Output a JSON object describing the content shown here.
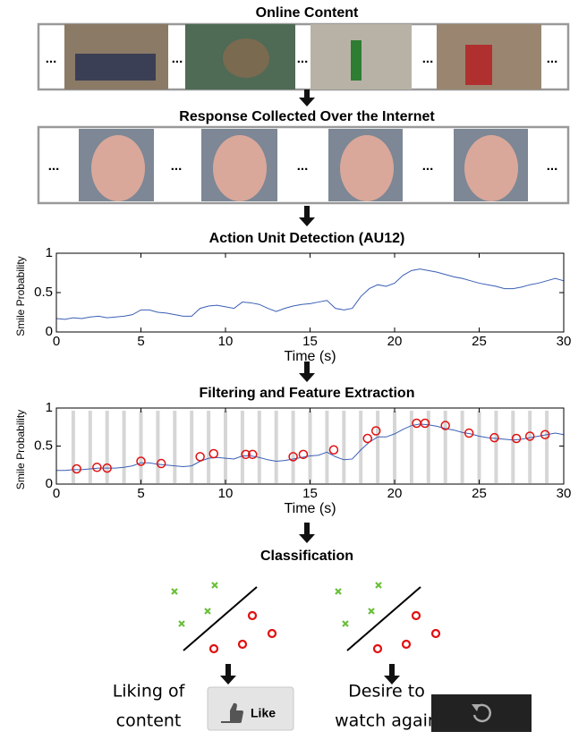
{
  "stages": [
    "Online Content",
    "Response Collected Over the Internet",
    "Classification"
  ],
  "ellipsis": "...",
  "chart_data": [
    {
      "type": "line",
      "title": "Action Unit Detection (AU12)",
      "xlabel": "Time (s)",
      "ylabel": "Smile Probability",
      "x": [
        0,
        0.5,
        1,
        1.5,
        2,
        2.5,
        3,
        3.5,
        4,
        4.5,
        5,
        5.5,
        6,
        6.5,
        7,
        7.5,
        8,
        8.5,
        9,
        9.5,
        10,
        10.5,
        11,
        11.5,
        12,
        12.5,
        13,
        13.5,
        14,
        14.5,
        15,
        15.5,
        16,
        16.5,
        17,
        17.5,
        18,
        18.5,
        19,
        19.5,
        20,
        20.5,
        21,
        21.5,
        22,
        22.5,
        23,
        23.5,
        24,
        24.5,
        25,
        25.5,
        26,
        26.5,
        27,
        27.5,
        28,
        28.5,
        29,
        29.5,
        30
      ],
      "values": [
        0.17,
        0.16,
        0.18,
        0.17,
        0.19,
        0.2,
        0.18,
        0.19,
        0.2,
        0.22,
        0.28,
        0.28,
        0.25,
        0.24,
        0.22,
        0.2,
        0.2,
        0.3,
        0.33,
        0.34,
        0.32,
        0.3,
        0.38,
        0.37,
        0.35,
        0.3,
        0.26,
        0.3,
        0.33,
        0.35,
        0.36,
        0.38,
        0.4,
        0.3,
        0.28,
        0.3,
        0.45,
        0.55,
        0.6,
        0.58,
        0.62,
        0.72,
        0.78,
        0.8,
        0.78,
        0.76,
        0.73,
        0.7,
        0.68,
        0.65,
        0.62,
        0.6,
        0.58,
        0.55,
        0.55,
        0.57,
        0.6,
        0.62,
        0.65,
        0.68,
        0.65
      ],
      "color": "#3b5fb5",
      "xlim": [
        0,
        30
      ],
      "ylim": [
        0,
        1
      ],
      "xticks": [
        0,
        5,
        10,
        15,
        20,
        25,
        30
      ],
      "yticks": [
        0,
        0.5,
        1
      ]
    },
    {
      "type": "line",
      "title": "Filtering and Feature Extraction",
      "xlabel": "Time (s)",
      "ylabel": "Smile Probability",
      "x": [
        0,
        0.5,
        1,
        1.5,
        2,
        2.5,
        3,
        3.5,
        4,
        4.5,
        5,
        5.5,
        6,
        6.5,
        7,
        7.5,
        8,
        8.5,
        9,
        9.5,
        10,
        10.5,
        11,
        11.5,
        12,
        12.5,
        13,
        13.5,
        14,
        14.5,
        15,
        15.5,
        16,
        16.5,
        17,
        17.5,
        18,
        18.5,
        19,
        19.5,
        20,
        20.5,
        21,
        21.5,
        22,
        22.5,
        23,
        23.5,
        24,
        24.5,
        25,
        25.5,
        26,
        26.5,
        27,
        27.5,
        28,
        28.5,
        29,
        29.5,
        30
      ],
      "values": [
        0.18,
        0.18,
        0.19,
        0.19,
        0.2,
        0.21,
        0.21,
        0.21,
        0.22,
        0.24,
        0.28,
        0.28,
        0.26,
        0.25,
        0.24,
        0.23,
        0.24,
        0.3,
        0.34,
        0.35,
        0.34,
        0.33,
        0.37,
        0.37,
        0.35,
        0.32,
        0.3,
        0.31,
        0.33,
        0.35,
        0.37,
        0.38,
        0.42,
        0.36,
        0.32,
        0.33,
        0.45,
        0.55,
        0.62,
        0.62,
        0.66,
        0.72,
        0.77,
        0.79,
        0.78,
        0.76,
        0.73,
        0.71,
        0.68,
        0.66,
        0.63,
        0.61,
        0.6,
        0.59,
        0.58,
        0.59,
        0.61,
        0.63,
        0.65,
        0.67,
        0.65
      ],
      "color": "#3b5fb5",
      "points": {
        "x": [
          1.2,
          2.4,
          3,
          5,
          6.2,
          8.5,
          9.3,
          11.2,
          11.6,
          14,
          14.6,
          16.4,
          18.4,
          18.9,
          21.3,
          21.8,
          23,
          24.4,
          25.9,
          27.2,
          28,
          28.9
        ],
        "values": [
          0.2,
          0.22,
          0.21,
          0.3,
          0.27,
          0.36,
          0.4,
          0.39,
          0.39,
          0.36,
          0.39,
          0.45,
          0.6,
          0.7,
          0.8,
          0.8,
          0.77,
          0.67,
          0.61,
          0.6,
          0.63,
          0.65
        ],
        "color": "#e01010"
      },
      "windows": [
        1,
        2,
        3,
        4,
        5,
        6,
        7,
        8,
        9,
        10,
        11,
        12,
        13,
        14,
        15,
        16,
        17,
        18,
        19,
        20,
        21,
        22,
        23,
        24,
        25,
        26,
        27,
        28,
        29
      ],
      "window_color": "#d6d6d6",
      "xlim": [
        0,
        30
      ],
      "ylim": [
        0,
        1
      ],
      "xticks": [
        0,
        5,
        10,
        15,
        20,
        25,
        30
      ],
      "yticks": [
        0,
        0.5,
        1
      ]
    }
  ],
  "outcomes": [
    {
      "label_lines": [
        "Liking of",
        "content"
      ],
      "button": "Like"
    },
    {
      "label_lines": [
        "Desire to",
        "watch again"
      ]
    }
  ]
}
